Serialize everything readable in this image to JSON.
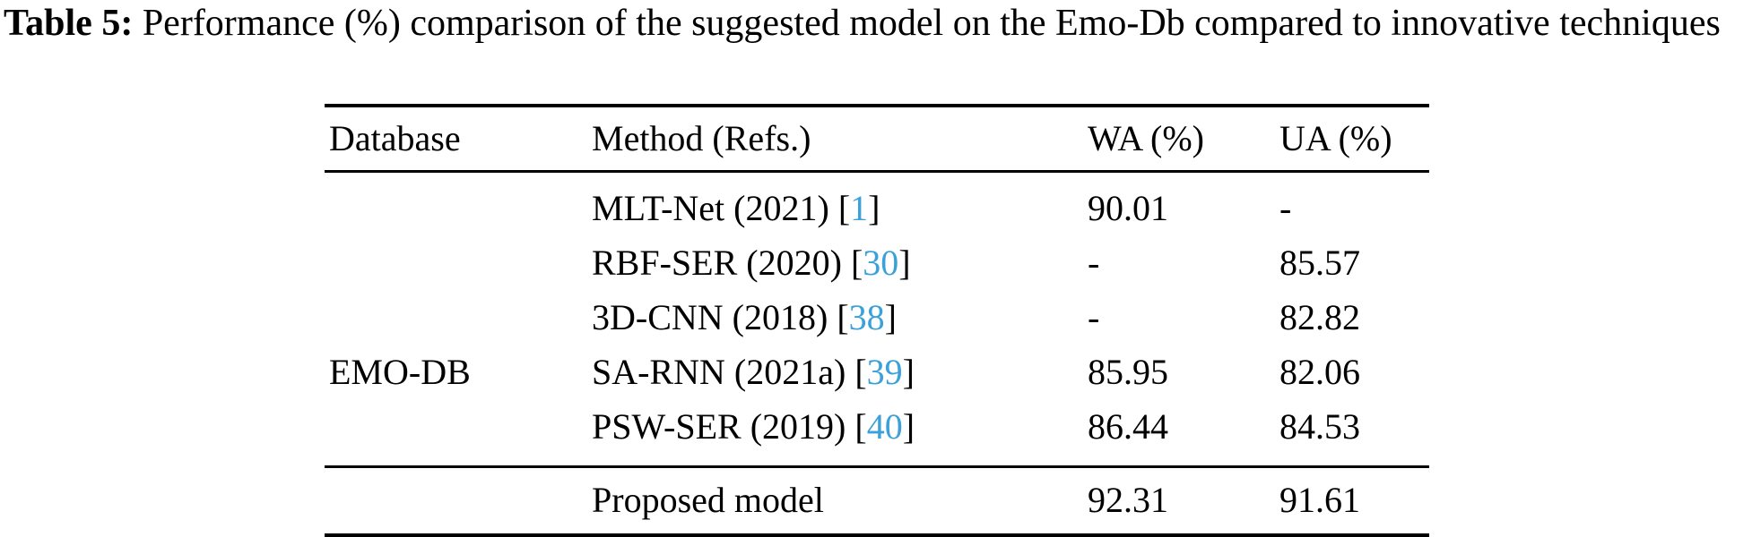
{
  "page": {
    "background": "#ffffff",
    "text_color": "#000000",
    "citation_color": "#3BA1D9"
  },
  "caption": {
    "label": "Table 5:",
    "text": "Performance (%) comparison of the suggested model on the Emo-Db compared to innovative techniques"
  },
  "table": {
    "headers": {
      "database": "Database",
      "method": "Method (Refs.)",
      "wa": "WA (%)",
      "ua": "UA (%)"
    },
    "citation_prefix": "[",
    "citation_suffix": "]",
    "rows": [
      {
        "database": "",
        "method": "MLT-Net (2021)",
        "ref": "1",
        "wa": "90.01",
        "ua": "-"
      },
      {
        "database": "",
        "method": "RBF-SER (2020)",
        "ref": "30",
        "wa": "-",
        "ua": "85.57"
      },
      {
        "database": "",
        "method": "3D-CNN (2018)",
        "ref": "38",
        "wa": "-",
        "ua": "82.82"
      },
      {
        "database": "EMO-DB",
        "method": "SA-RNN (2021a)",
        "ref": "39",
        "wa": "85.95",
        "ua": "82.06"
      },
      {
        "database": "",
        "method": "PSW-SER (2019)",
        "ref": "40",
        "wa": "86.44",
        "ua": "84.53"
      }
    ],
    "footer": {
      "database": "",
      "method": "Proposed model",
      "wa": "92.31",
      "ua": "91.61"
    }
  }
}
